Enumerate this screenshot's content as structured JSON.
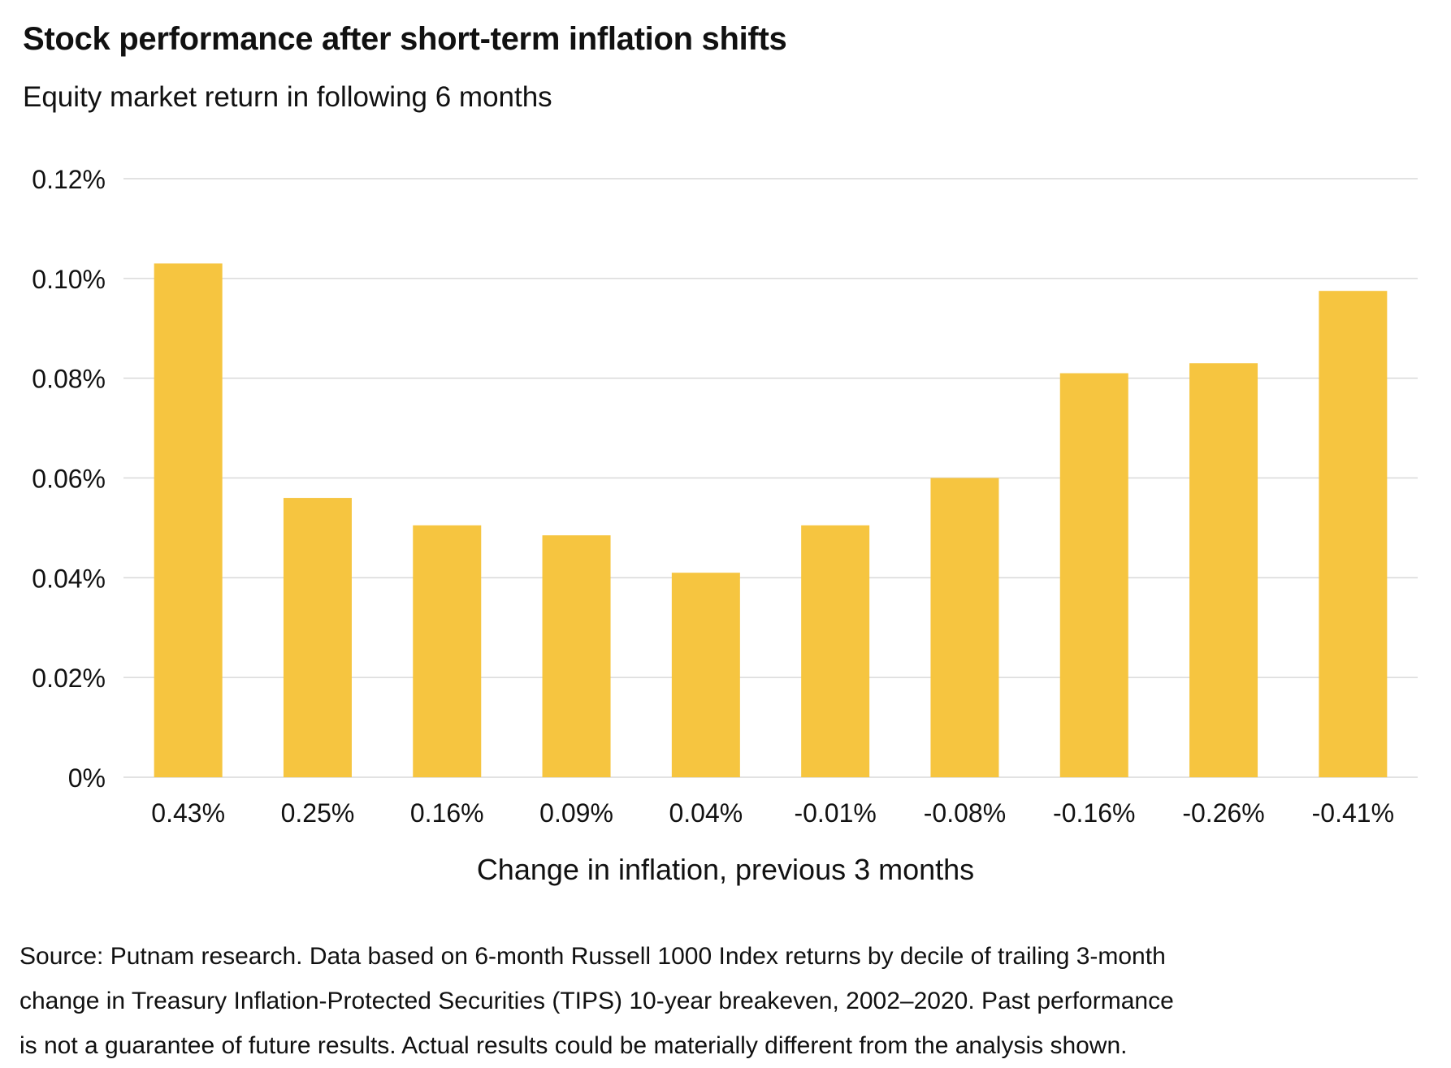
{
  "header": {
    "title": "Stock performance after short-term inflation shifts",
    "subtitle": "Equity market return in following 6 months"
  },
  "colors": {
    "bar": "#F6C540",
    "gridline": "#D9D9D9",
    "text": "#111111"
  },
  "chart_data": {
    "type": "bar",
    "title": "Stock performance after short-term inflation shifts",
    "subtitle": "Equity market return in following 6 months",
    "xlabel": "Change in inflation, previous 3 months",
    "ylabel": "",
    "categories": [
      "0.43%",
      "0.25%",
      "0.16%",
      "0.09%",
      "0.04%",
      "-0.01%",
      "-0.08%",
      "-0.16%",
      "-0.26%",
      "-0.41%"
    ],
    "values": [
      0.103,
      0.056,
      0.0505,
      0.0485,
      0.041,
      0.0505,
      0.06,
      0.081,
      0.083,
      0.0975
    ],
    "ylim": [
      0,
      0.12
    ],
    "yticks": [
      0,
      0.02,
      0.04,
      0.06,
      0.08,
      0.1,
      0.12
    ],
    "ytick_labels": [
      "0%",
      "0.02%",
      "0.04%",
      "0.06%",
      "0.08%",
      "0.10%",
      "0.12%"
    ],
    "grid": true,
    "legend": "none"
  },
  "footnote": {
    "lines": [
      "Source: Putnam research. Data based on 6-month Russell 1000 Index returns by decile of trailing 3-month",
      "change in Treasury Inflation-Protected Securities (TIPS) 10-year breakeven, 2002–2020. Past performance",
      "is not a guarantee of future results. Actual results could be materially different from the analysis shown."
    ]
  }
}
